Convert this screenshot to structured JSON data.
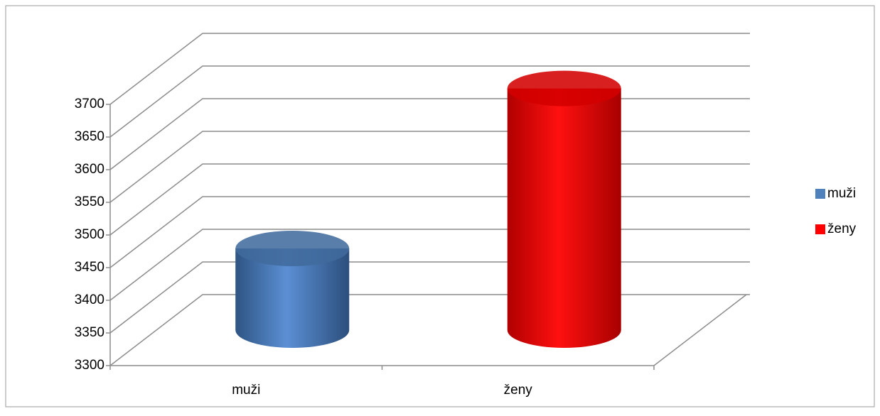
{
  "chart_data": {
    "type": "bar3d",
    "categories": [
      "muži",
      "ženy"
    ],
    "series": [
      {
        "name": "muži",
        "color": "#4f81bd",
        "values": [
          3425,
          null
        ]
      },
      {
        "name": "ženy",
        "color": "#ff0000",
        "values": [
          null,
          3670
        ]
      }
    ],
    "ylim": [
      3300,
      3700
    ],
    "yticks": [
      3300,
      3350,
      3400,
      3450,
      3500,
      3550,
      3600,
      3650,
      3700
    ],
    "grid": true,
    "legend": "right"
  }
}
